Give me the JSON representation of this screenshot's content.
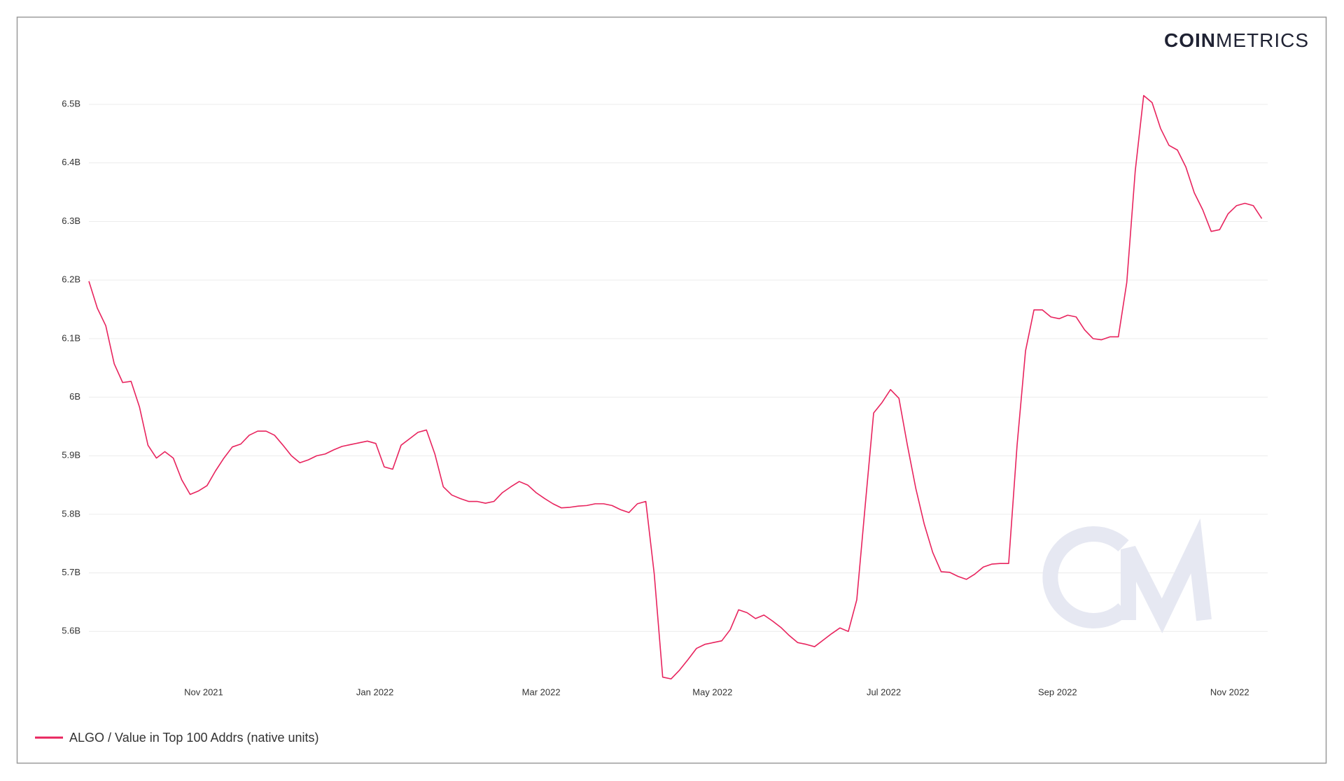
{
  "logo": {
    "bold": "COIN",
    "light": "METRICS"
  },
  "chart_data": {
    "type": "line",
    "series": [
      {
        "name": "ALGO / Value in Top 100 Addrs (native units)",
        "color": "#e8245e",
        "values": [
          6.198,
          6.152,
          6.122,
          6.057,
          6.025,
          6.027,
          5.983,
          5.918,
          5.896,
          5.907,
          5.896,
          5.859,
          5.834,
          5.84,
          5.849,
          5.874,
          5.896,
          5.915,
          5.92,
          5.935,
          5.942,
          5.942,
          5.935,
          5.918,
          5.9,
          5.888,
          5.893,
          5.9,
          5.903,
          5.91,
          5.916,
          5.919,
          5.922,
          5.925,
          5.921,
          5.881,
          5.877,
          5.918,
          5.929,
          5.94,
          5.944,
          5.903,
          5.847,
          5.833,
          5.827,
          5.822,
          5.822,
          5.819,
          5.822,
          5.837,
          5.847,
          5.856,
          5.85,
          5.837,
          5.827,
          5.818,
          5.811,
          5.812,
          5.814,
          5.815,
          5.818,
          5.818,
          5.815,
          5.808,
          5.803,
          5.818,
          5.822,
          5.698,
          5.522,
          5.519,
          5.534,
          5.552,
          5.571,
          5.578,
          5.581,
          5.584,
          5.603,
          5.637,
          5.632,
          5.622,
          5.628,
          5.618,
          5.607,
          5.593,
          5.581,
          5.578,
          5.574,
          5.585,
          5.596,
          5.606,
          5.6,
          5.654,
          5.815,
          5.973,
          5.991,
          6.013,
          5.998,
          5.918,
          5.844,
          5.783,
          5.735,
          5.702,
          5.701,
          5.694,
          5.689,
          5.698,
          5.71,
          5.715,
          5.716,
          5.716,
          5.918,
          6.079,
          6.149,
          6.149,
          6.137,
          6.134,
          6.14,
          6.137,
          6.115,
          6.1,
          6.098,
          6.103,
          6.103,
          6.196,
          6.386,
          6.515,
          6.503,
          6.459,
          6.43,
          6.422,
          6.393,
          6.349,
          6.32,
          6.283,
          6.286,
          6.313,
          6.327,
          6.331,
          6.327,
          6.305
        ]
      }
    ],
    "xlim": [
      0,
      139.7
    ],
    "xticks": [
      {
        "value": 13.6,
        "label": "Nov 2021"
      },
      {
        "value": 33.9,
        "label": "Jan 2022"
      },
      {
        "value": 53.6,
        "label": "Mar 2022"
      },
      {
        "value": 73.9,
        "label": "May 2022"
      },
      {
        "value": 94.2,
        "label": "Jul 2022"
      },
      {
        "value": 114.8,
        "label": "Sep 2022"
      },
      {
        "value": 135.2,
        "label": "Nov 2022"
      }
    ],
    "ylim": [
      5.5,
      6.53
    ],
    "yticks": [
      {
        "value": 5.6,
        "label": "5.6B"
      },
      {
        "value": 5.7,
        "label": "5.7B"
      },
      {
        "value": 5.8,
        "label": "5.8B"
      },
      {
        "value": 5.9,
        "label": "5.9B"
      },
      {
        "value": 6,
        "label": "6B"
      },
      {
        "value": 6.1,
        "label": "6.1B"
      },
      {
        "value": 6.2,
        "label": "6.2B"
      },
      {
        "value": 6.3,
        "label": "6.3B"
      },
      {
        "value": 6.4,
        "label": "6.4B"
      },
      {
        "value": 6.5,
        "label": "6.5B"
      }
    ],
    "grid": true
  }
}
